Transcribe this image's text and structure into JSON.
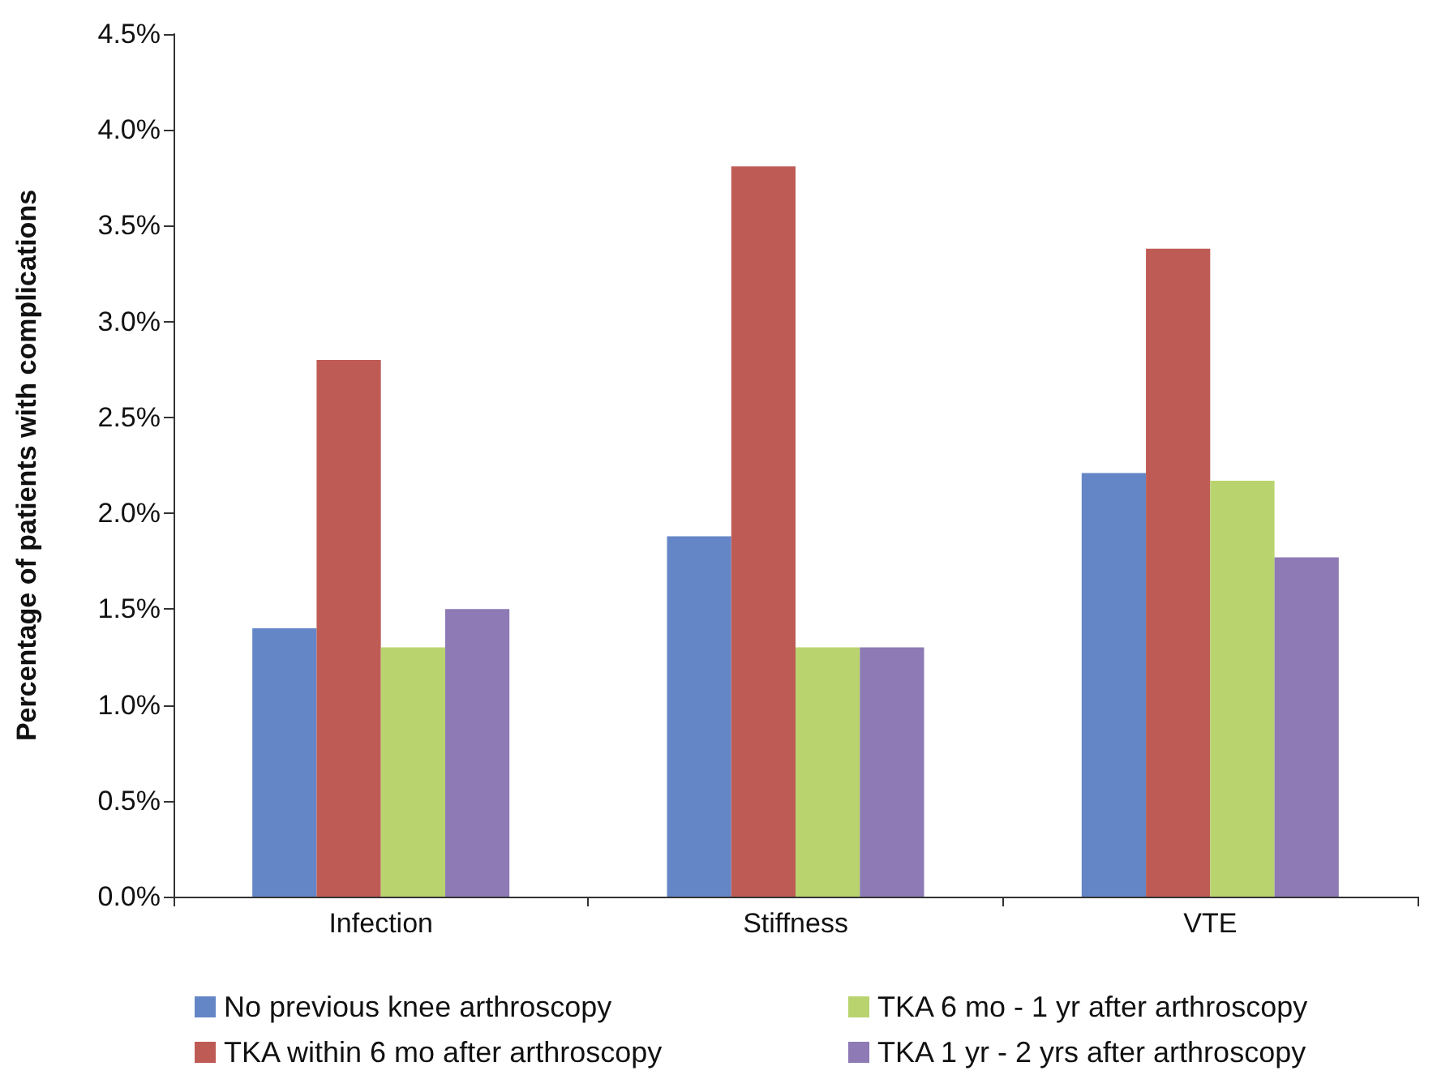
{
  "chart_data": {
    "type": "bar",
    "ylabel": "Percentage of patients with complications",
    "categories": [
      "Infection",
      "Stiffness",
      "VTE"
    ],
    "series": [
      {
        "name": "No previous knee arthroscopy",
        "color": "#6586c6",
        "values": [
          1.4,
          1.88,
          2.21
        ]
      },
      {
        "name": "TKA within 6 mo after arthroscopy",
        "color": "#bf5b55",
        "values": [
          2.8,
          3.81,
          3.38
        ]
      },
      {
        "name": "TKA 6 mo - 1 yr after arthroscopy",
        "color": "#b9d46e",
        "values": [
          1.3,
          1.3,
          2.17
        ]
      },
      {
        "name": "TKA 1 yr - 2 yrs after arthroscopy",
        "color": "#8e7ab5",
        "values": [
          1.5,
          1.3,
          1.77
        ]
      }
    ],
    "ylim": [
      0,
      4.5
    ],
    "yticks": [
      {
        "value": 0,
        "label": "0.0%"
      },
      {
        "value": 0.5,
        "label": "0.5%"
      },
      {
        "value": 1,
        "label": "1.0%"
      },
      {
        "value": 1.5,
        "label": "1.5%"
      },
      {
        "value": 2,
        "label": "2.0%"
      },
      {
        "value": 2.5,
        "label": "2.5%"
      },
      {
        "value": 3,
        "label": "3.0%"
      },
      {
        "value": 3.5,
        "label": "3.5%"
      },
      {
        "value": 4,
        "label": "4.0%"
      },
      {
        "value": 4.5,
        "label": "4.5%"
      }
    ],
    "grid": false,
    "legend": "bottom"
  }
}
